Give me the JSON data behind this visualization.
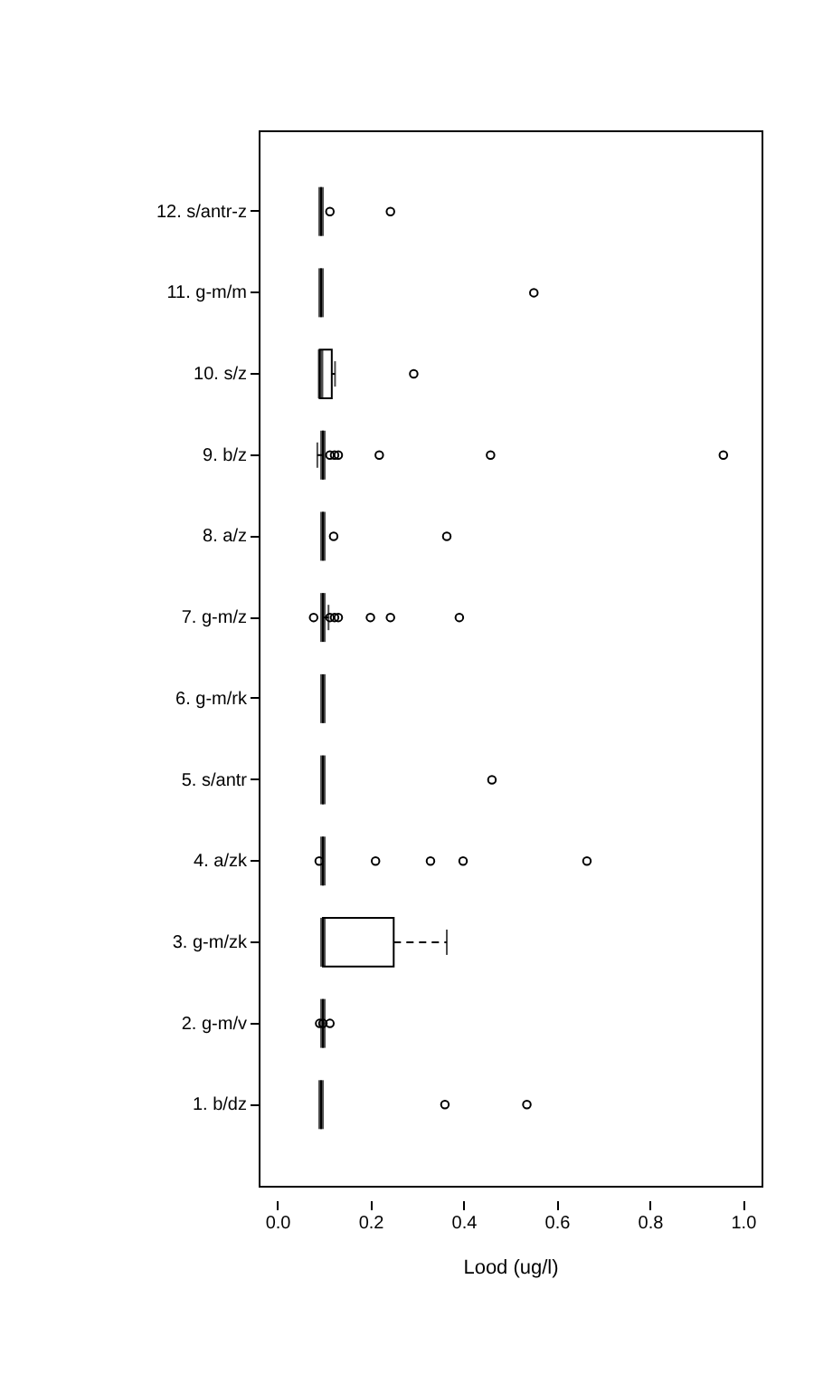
{
  "chart_data": {
    "type": "box",
    "orientation": "horizontal",
    "xlabel": "Lood (ug/l)",
    "categories": [
      "12. s/antr-z",
      "11. g-m/m",
      "10. s/z",
      "9. b/z",
      "8. a/z",
      "7. g-m/z",
      "6. g-m/rk",
      "5. s/antr",
      "4. a/zk",
      "3. g-m/zk",
      "2. g-m/v",
      "1. b/dz"
    ],
    "boxes": [
      {
        "low": 0.094,
        "q1": 0.094,
        "median": 0.094,
        "q3": 0.094,
        "high": 0.094,
        "outliers": [
          0.113,
          0.243
        ]
      },
      {
        "low": 0.094,
        "q1": 0.094,
        "median": 0.094,
        "q3": 0.094,
        "high": 0.094,
        "outliers": [
          0.551
        ]
      },
      {
        "low": 0.091,
        "q1": 0.091,
        "median": 0.093,
        "q3": 0.117,
        "high": 0.124,
        "outliers": [
          0.293
        ]
      },
      {
        "low": 0.086,
        "q1": 0.098,
        "median": 0.098,
        "q3": 0.098,
        "high": 0.098,
        "outliers": [
          0.113,
          0.123,
          0.131,
          0.219,
          0.458,
          0.958
        ]
      },
      {
        "low": 0.098,
        "q1": 0.098,
        "median": 0.098,
        "q3": 0.098,
        "high": 0.098,
        "outliers": [
          0.121,
          0.364
        ]
      },
      {
        "low": 0.098,
        "q1": 0.098,
        "median": 0.098,
        "q3": 0.098,
        "high": 0.11,
        "outliers": [
          0.078,
          0.113,
          0.123,
          0.131,
          0.2,
          0.243,
          0.391
        ]
      },
      {
        "low": 0.098,
        "q1": 0.098,
        "median": 0.098,
        "q3": 0.098,
        "high": 0.098
      },
      {
        "low": 0.098,
        "q1": 0.098,
        "median": 0.098,
        "q3": 0.098,
        "high": 0.098,
        "outliers": [
          0.461
        ]
      },
      {
        "low": 0.098,
        "q1": 0.098,
        "median": 0.098,
        "q3": 0.098,
        "high": 0.098,
        "outliers": [
          0.09,
          0.211,
          0.329,
          0.399,
          0.665
        ]
      },
      {
        "low": 0.098,
        "q1": 0.098,
        "median": 0.098,
        "q3": 0.25,
        "high": 0.364
      },
      {
        "low": 0.098,
        "q1": 0.098,
        "median": 0.098,
        "q3": 0.098,
        "high": 0.098,
        "outliers": [
          0.091,
          0.098,
          0.113
        ]
      },
      {
        "low": 0.094,
        "q1": 0.094,
        "median": 0.094,
        "q3": 0.094,
        "high": 0.094,
        "outliers": [
          0.36,
          0.536
        ]
      }
    ],
    "xlim": [
      -0.04,
      1.04
    ],
    "xticks": [
      {
        "value": 0,
        "label": "0.0"
      },
      {
        "value": 0.2,
        "label": "0.2"
      },
      {
        "value": 0.4,
        "label": "0.4"
      },
      {
        "value": 0.6,
        "label": "0.6"
      },
      {
        "value": 0.8,
        "label": "0.8"
      },
      {
        "value": 1.0,
        "label": "1.0"
      }
    ],
    "grid": false
  }
}
